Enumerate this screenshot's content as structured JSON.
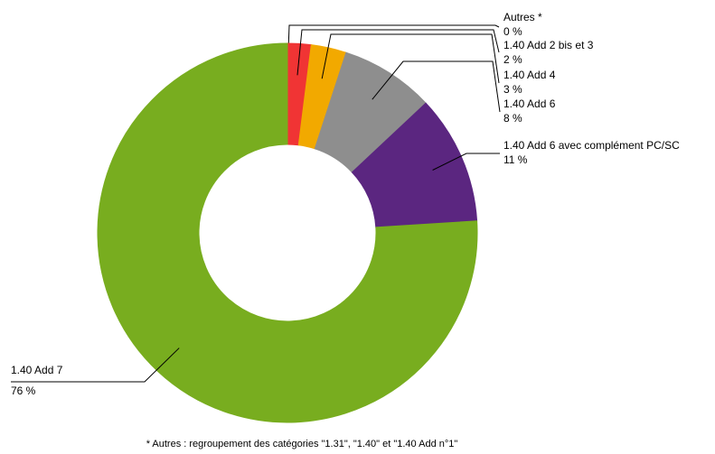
{
  "chart_data": {
    "type": "donut",
    "categories": [
      "Autres *",
      "1.40 Add 2 bis et 3",
      "1.40 Add 4",
      "1.40 Add 6",
      "1.40 Add 6 avec complément PC/SC",
      "1.40 Add 7"
    ],
    "values": [
      0,
      2,
      3,
      8,
      11,
      76
    ],
    "value_labels": [
      "0 %",
      "2 %",
      "3 %",
      "8 %",
      "11 %",
      "76 %"
    ],
    "colors": [
      "#2b4a8c",
      "#f03434",
      "#f2a900",
      "#8e8e8e",
      "#5b2680",
      "#78ad1f"
    ],
    "footnote": "* Autres : regroupement des catégories \"1.31\", \"1.40\" et \"1.40 Add n°1\""
  }
}
